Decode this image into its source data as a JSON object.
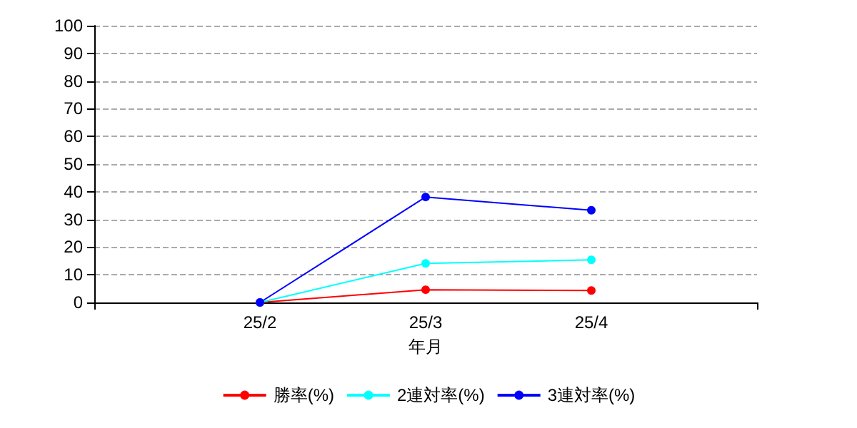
{
  "chart_data": {
    "type": "line",
    "xlabel": "年月",
    "categories": [
      null,
      "25/2",
      "25/3",
      "25/4",
      null
    ],
    "series": [
      {
        "name": "勝率(%)",
        "color": "#ff0000",
        "values": [
          null,
          0,
          4.6,
          4.3,
          null
        ]
      },
      {
        "name": "2連対率(%)",
        "color": "#00ffff",
        "values": [
          null,
          0,
          14.1,
          15.4,
          null
        ]
      },
      {
        "name": "3連対率(%)",
        "color": "#0000ff",
        "values": [
          null,
          0,
          38.1,
          33.3,
          null
        ]
      }
    ],
    "ylim": [
      0,
      100
    ],
    "yticks": [
      0,
      10,
      20,
      30,
      40,
      50,
      60,
      70,
      80,
      90,
      100
    ],
    "grid": "y",
    "legend": "bottom",
    "marker": "circle",
    "line_style": "solid"
  }
}
